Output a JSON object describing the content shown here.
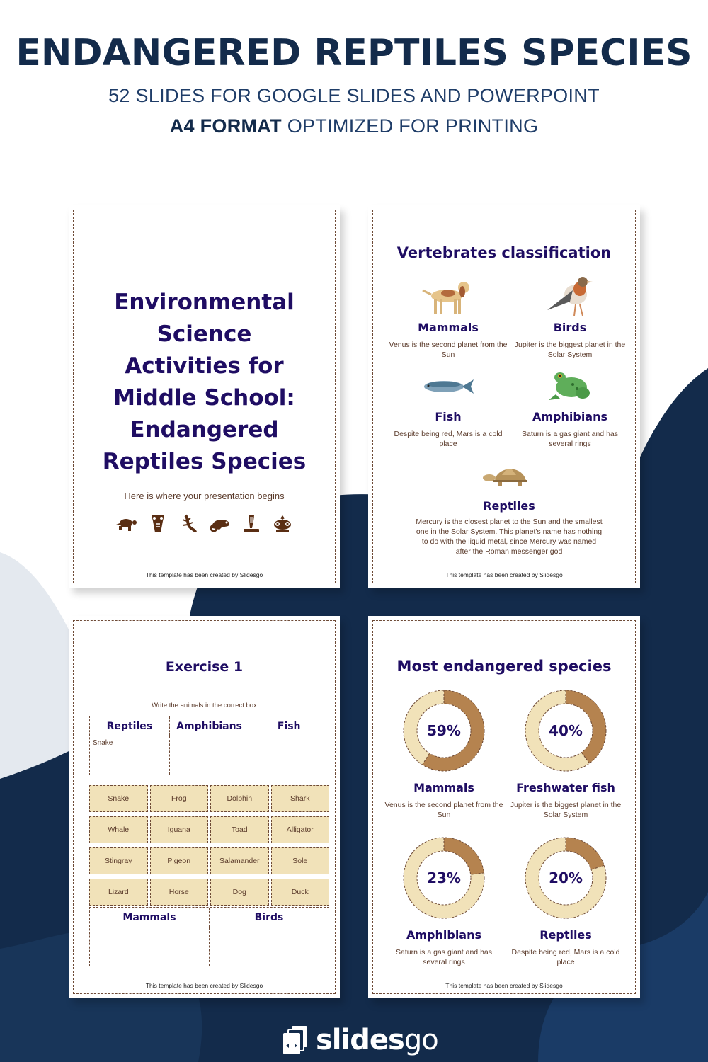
{
  "header": {
    "title": "ENDANGERED REPTILES SPECIES",
    "subtitle": "52 SLIDES FOR GOOGLE SLIDES AND POWERPOINT",
    "format_bold": "A4 FORMAT",
    "format_rest": " OPTIMIZED FOR PRINTING"
  },
  "colors": {
    "navy": "#132b4b",
    "title_purple": "#1f0d63",
    "brown_text": "#5a3a2a",
    "dashed_border": "#6e4a36",
    "donut_dark": "#b5834f",
    "donut_light": "#f1e2b9",
    "bg_light": "#e4e9ef"
  },
  "credit": "This template has been created by Slidesgo",
  "slides": {
    "cover": {
      "title_lines": [
        "Environmental",
        "Science",
        "Activities for",
        "Middle School:",
        "Endangered",
        "Reptiles Species"
      ],
      "subtitle": "Here is where your presentation begins",
      "icons": [
        "turtle-icon",
        "crocodile-icon",
        "lizard-icon",
        "chameleon-icon",
        "cobra-icon",
        "frog-icon"
      ]
    },
    "vertebrates": {
      "title": "Vertebrates classification",
      "items": [
        {
          "name": "Mammals",
          "desc": "Venus is the second planet from the Sun",
          "image": "dog"
        },
        {
          "name": "Birds",
          "desc": "Jupiter is the biggest planet in the Solar System",
          "image": "robin"
        },
        {
          "name": "Fish",
          "desc": "Despite being red, Mars is a cold place",
          "image": "fish"
        },
        {
          "name": "Amphibians",
          "desc": "Saturn is a gas giant and has several rings",
          "image": "frog"
        },
        {
          "name": "Reptiles",
          "desc": "Mercury is the closest planet to the Sun and the smallest one in the Solar System. This planet's name has nothing to do with the liquid metal, since Mercury was named after the Roman messenger god",
          "image": "tortoise"
        }
      ]
    },
    "exercise": {
      "title": "Exercise 1",
      "instruction": "Write the animals in the correct box",
      "top_table": {
        "headers": [
          "Reptiles",
          "Amphibians",
          "Fish"
        ],
        "cells": [
          "Snake",
          "",
          ""
        ]
      },
      "words": [
        "Snake",
        "Frog",
        "Dolphin",
        "Shark",
        "Whale",
        "Iguana",
        "Toad",
        "Alligator",
        "Stingray",
        "Pigeon",
        "Salamander",
        "Sole",
        "Lizard",
        "Horse",
        "Dog",
        "Duck"
      ],
      "bottom_table": {
        "headers": [
          "Mammals",
          "Birds"
        ],
        "cells": [
          "",
          ""
        ]
      }
    },
    "endangered": {
      "title": "Most endangered species",
      "items": [
        {
          "pct_label": "59%",
          "pct": 59,
          "name": "Mammals",
          "desc": "Venus is the second planet from the Sun"
        },
        {
          "pct_label": "40%",
          "pct": 40,
          "name": "Freshwater fish",
          "desc": "Jupiter is the biggest planet in the Solar System"
        },
        {
          "pct_label": "23%",
          "pct": 23,
          "name": "Amphibians",
          "desc": "Saturn is a gas giant and has several rings"
        },
        {
          "pct_label": "20%",
          "pct": 20,
          "name": "Reptiles",
          "desc": "Despite being red, Mars is a cold place"
        }
      ]
    }
  },
  "chart_data": {
    "type": "pie",
    "title": "Most endangered species",
    "categories": [
      "Mammals",
      "Freshwater fish",
      "Amphibians",
      "Reptiles"
    ],
    "values": [
      59,
      40,
      23,
      20
    ],
    "unit": "%"
  },
  "logo": {
    "bold": "slides",
    "light": "go"
  }
}
